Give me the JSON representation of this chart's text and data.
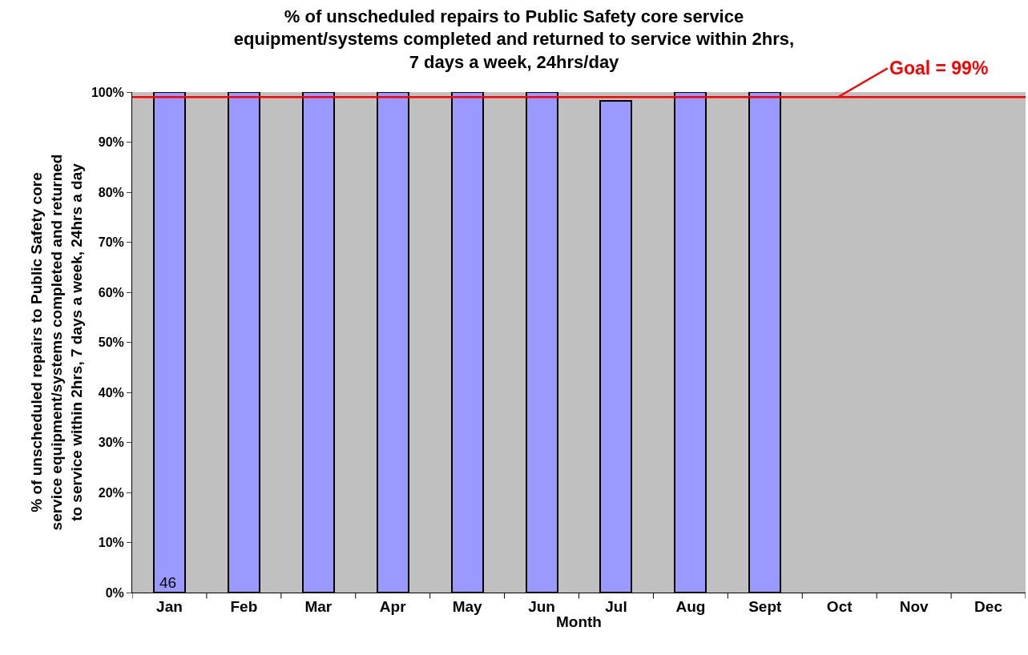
{
  "chart_data": {
    "type": "bar",
    "title": "% of unscheduled repairs to Public Safety core service equipment/systems completed and returned to service within 2hrs, 7 days a week, 24hrs/day",
    "xlabel": "Month",
    "ylabel": "% of unscheduled repairs to Public Safety core service equipment/systems completed and returned to service within 2hrs, 7 days a week, 24hrs a day",
    "categories": [
      "Jan",
      "Feb",
      "Mar",
      "Apr",
      "May",
      "Jun",
      "Jul",
      "Aug",
      "Sept",
      "Oct",
      "Nov",
      "Dec"
    ],
    "values": [
      100,
      100,
      100,
      100,
      100,
      100,
      98.2,
      100,
      100,
      null,
      null,
      null
    ],
    "color": "#9999ff",
    "ylim": [
      0,
      100
    ],
    "yticks": [
      {
        "value": 0,
        "label": "0%"
      },
      {
        "value": 10,
        "label": "10%"
      },
      {
        "value": 20,
        "label": "20%"
      },
      {
        "value": 30,
        "label": "30%"
      },
      {
        "value": 40,
        "label": "40%"
      },
      {
        "value": 50,
        "label": "50%"
      },
      {
        "value": 60,
        "label": "60%"
      },
      {
        "value": 70,
        "label": "70%"
      },
      {
        "value": 80,
        "label": "80%"
      },
      {
        "value": 90,
        "label": "90%"
      },
      {
        "value": 100,
        "label": "100%"
      }
    ],
    "ref_lines": [
      {
        "axis": "y",
        "value": 99,
        "label": "Goal = 99%",
        "color": "#ff0000",
        "line_style": "solid"
      }
    ],
    "annotations": [
      "46"
    ],
    "grid": false
  }
}
